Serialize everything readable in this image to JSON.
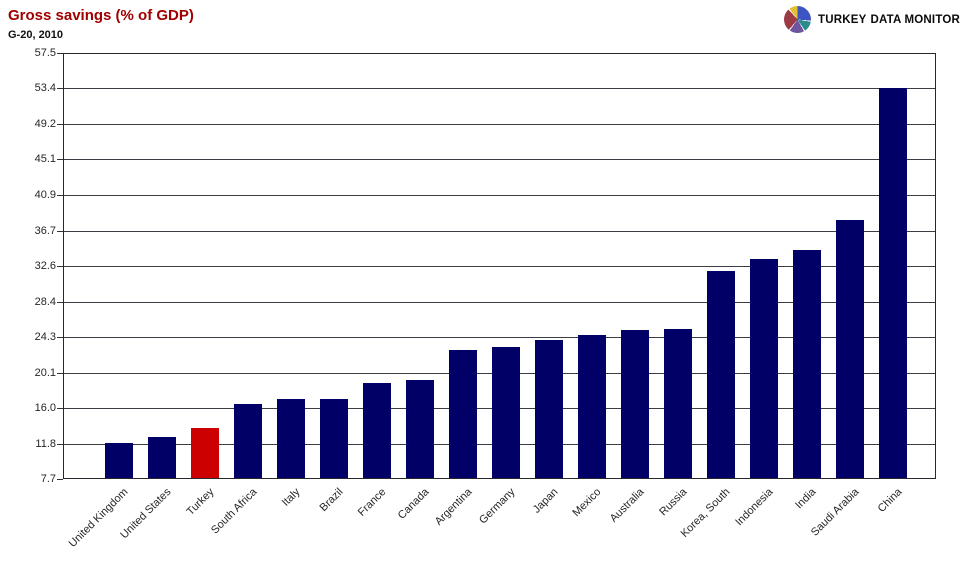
{
  "header": {
    "title": "Gross savings (% of GDP)",
    "subtitle": "G-20, 2010",
    "title_color": "#a00000"
  },
  "brand": {
    "name_regular": "TURKEY",
    "name_bold": "DATA MONITOR",
    "logo_icon": "pie-chart-icon",
    "logo_colors": [
      "#3d55c0",
      "#2e8b8b",
      "#6f55a0",
      "#9c3a46",
      "#e3c030"
    ]
  },
  "chart_data": {
    "type": "bar",
    "title": "Gross savings (% of GDP)",
    "subtitle": "G-20, 2010",
    "categories": [
      "United Kingdom",
      "United States",
      "Turkey",
      "South Africa",
      "Italy",
      "Brazil",
      "France",
      "Canada",
      "Argentina",
      "Germany",
      "Japan",
      "Mexico",
      "Australia",
      "Russia",
      "Korea, South",
      "Indonesia",
      "India",
      "Saudi Arabia",
      "China"
    ],
    "values": [
      11.8,
      12.5,
      13.6,
      16.4,
      16.9,
      16.9,
      18.8,
      19.2,
      22.7,
      23.0,
      23.8,
      24.4,
      25.0,
      25.1,
      31.9,
      33.3,
      34.3,
      37.9,
      53.3
    ],
    "bar_color": "#000066",
    "highlight": {
      "category": "Turkey",
      "color": "#cc0000"
    },
    "ylim": [
      7.7,
      57.5
    ],
    "y_ticks": [
      57.5,
      53.4,
      49.2,
      45.1,
      40.9,
      36.7,
      32.6,
      28.4,
      24.3,
      20.1,
      16.0,
      11.8,
      7.7
    ],
    "grid": true,
    "legend": false,
    "xlabel": "",
    "ylabel": ""
  }
}
